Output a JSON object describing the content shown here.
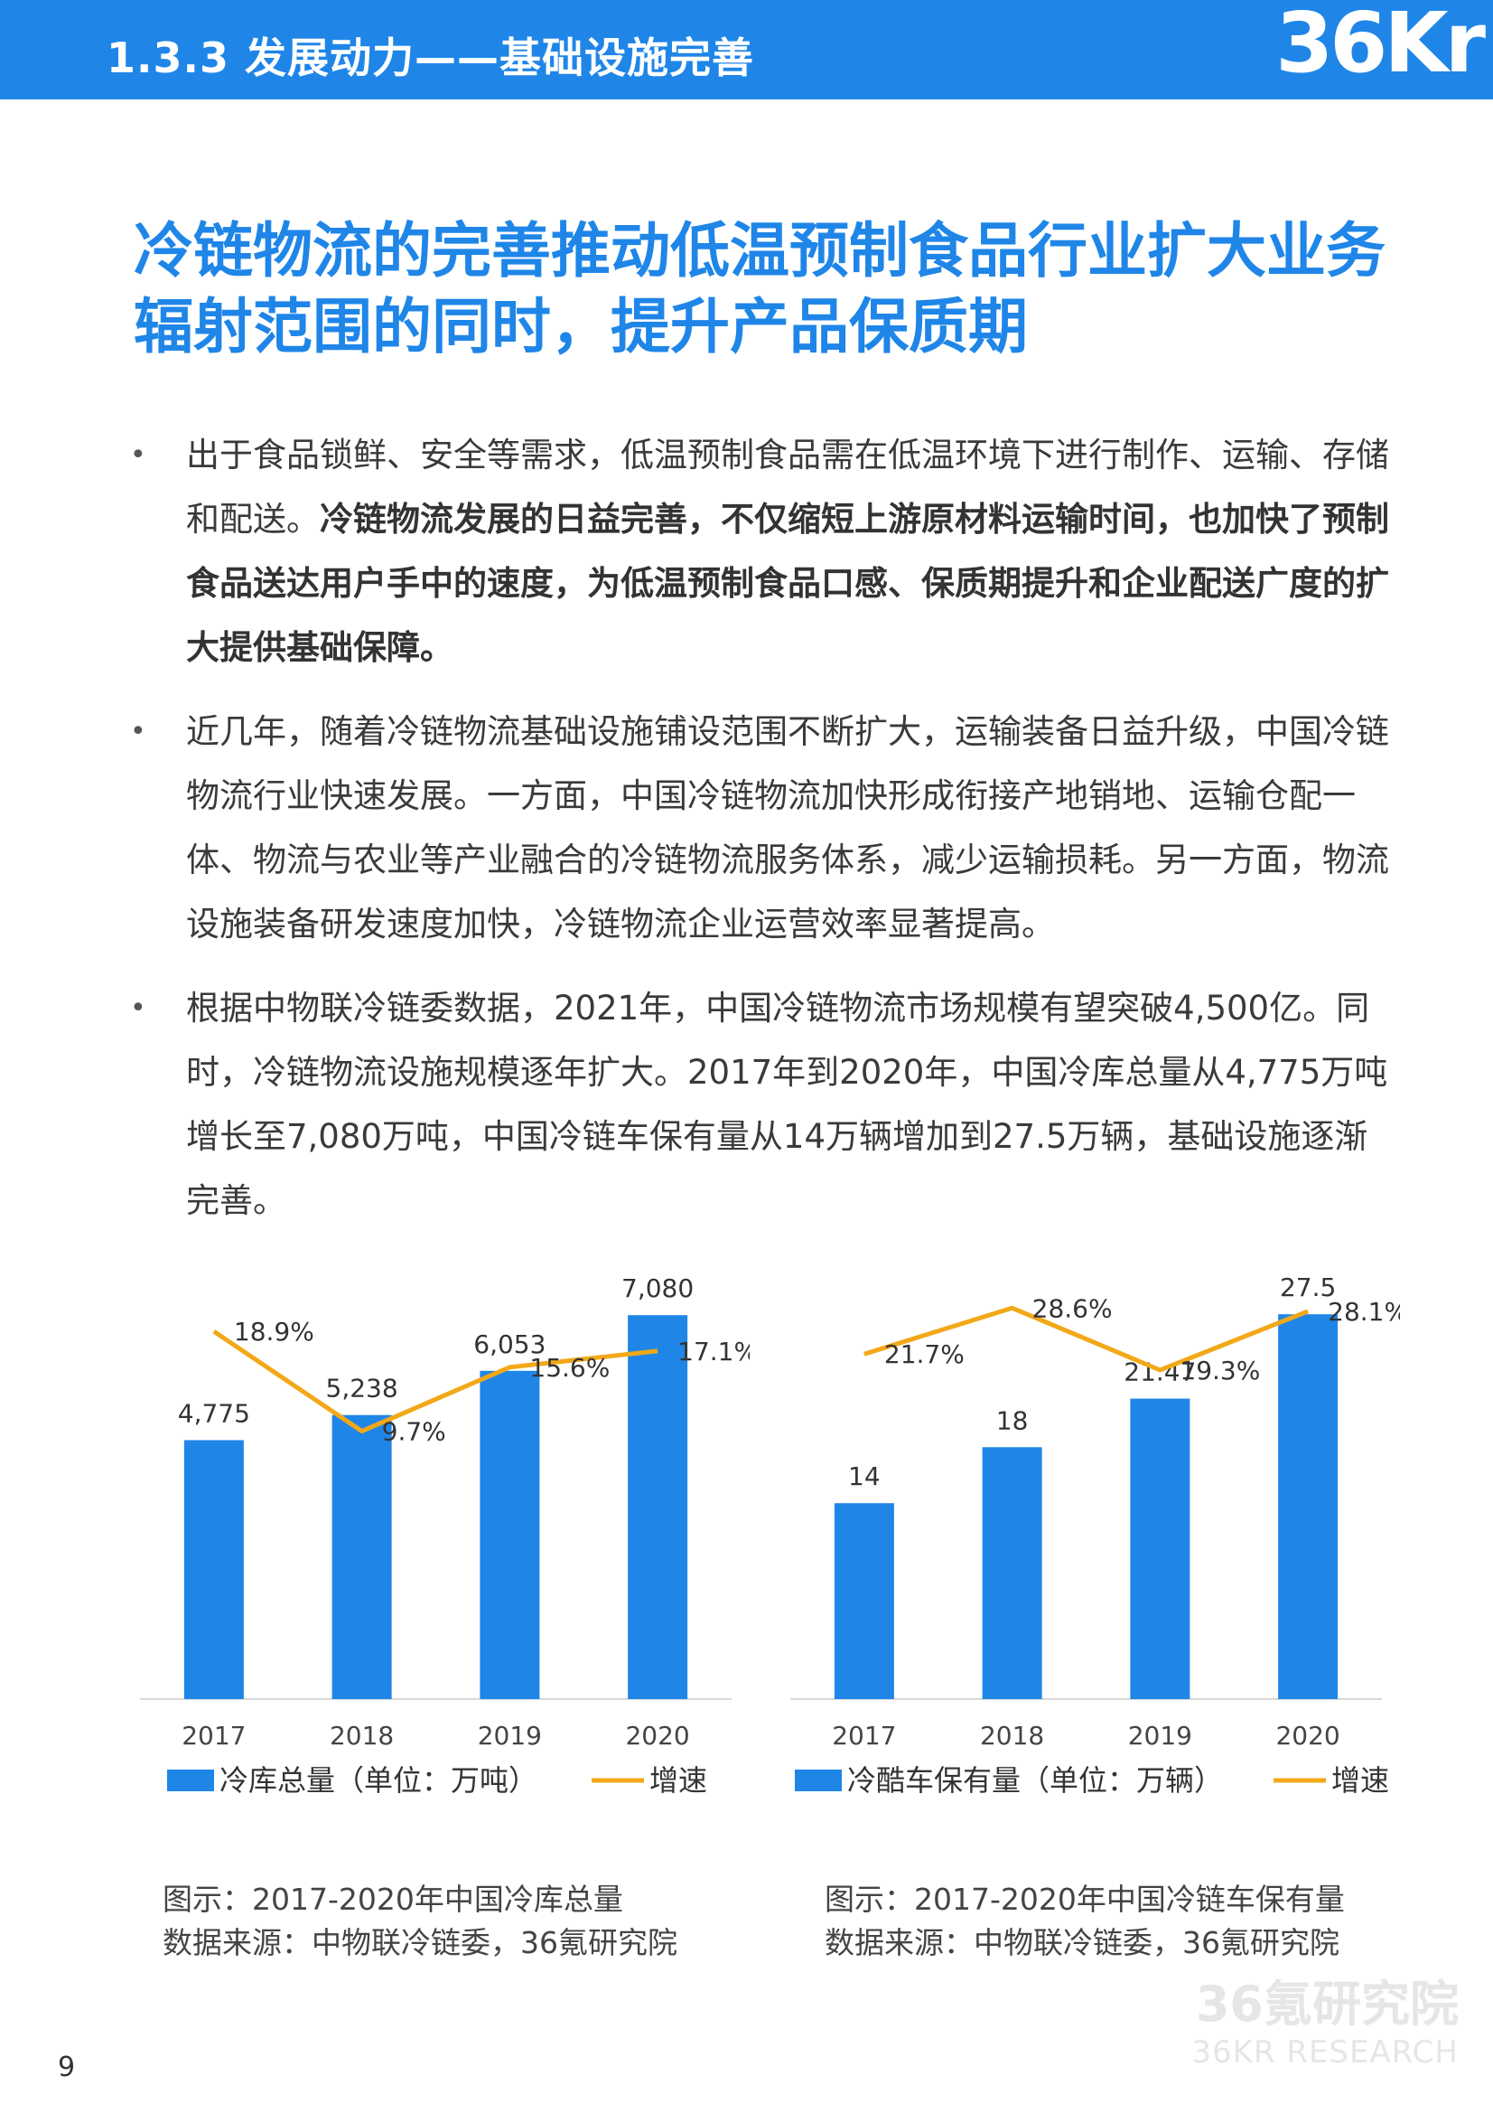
{
  "header": {
    "section_title": "1.3.3 发展动力——基础设施完善",
    "logo_text": "36Kr"
  },
  "main_title": "冷链物流的完善推动低温预制食品行业扩大业务辐射范围的同时，提升产品保质期",
  "bullets": [
    {
      "text": "出于食品锁鲜、安全等需求，低温预制食品需在低温环境下进行制作、运输、存储和配送。",
      "bold": "冷链物流发展的日益完善，不仅缩短上游原材料运输时间，也加快了预制食品送达用户手中的速度，为低温预制食品口感、保质期提升和企业配送广度的扩大提供基础保障。"
    },
    {
      "text": "近几年，随着冷链物流基础设施铺设范围不断扩大，运输装备日益升级，中国冷链物流行业快速发展。一方面，中国冷链物流加快形成衔接产地销地、运输仓配一体、物流与农业等产业融合的冷链物流服务体系，减少运输损耗。另一方面，物流设施装备研发速度加快，冷链物流企业运营效率显著提高。",
      "bold": ""
    },
    {
      "text": "根据中物联冷链委数据，2021年，中国冷链物流市场规模有望突破4,500亿。同时，冷链物流设施规模逐年扩大。2017年到2020年，中国冷库总量从4,775万吨增长至7,080万吨，中国冷链车保有量从14万辆增加到27.5万辆，基础设施逐渐完善。",
      "bold": ""
    }
  ],
  "bullet_symbol": "•",
  "chart_data": [
    {
      "type": "bar",
      "categories": [
        "2017",
        "2018",
        "2019",
        "2020"
      ],
      "series": [
        {
          "name": "冷库总量（单位：万吨）",
          "kind": "bar",
          "values": [
            4775,
            5238,
            6053,
            7080
          ],
          "labels": [
            "4,775",
            "5,238",
            "6,053",
            "7,080"
          ],
          "color": "#1f86e8"
        },
        {
          "name": "增速",
          "kind": "line",
          "values": [
            18.9,
            9.7,
            15.6,
            17.1
          ],
          "labels": [
            "18.9%",
            "9.7%",
            "15.6%",
            "17.1%"
          ],
          "color": "#f2a818"
        }
      ],
      "ylim": [
        0,
        8000
      ],
      "y2lim": [
        -15,
        25
      ],
      "grid": false,
      "legend": "bottom",
      "title": "",
      "xlabel": "",
      "ylabel": ""
    },
    {
      "type": "bar",
      "categories": [
        "2017",
        "2018",
        "2019",
        "2020"
      ],
      "series": [
        {
          "name": "冷酷车保有量（单位：万辆）",
          "kind": "bar",
          "values": [
            14,
            18,
            21.47,
            27.5
          ],
          "labels": [
            "14",
            "18",
            "21.47",
            "27.5"
          ],
          "color": "#1f86e8"
        },
        {
          "name": "增速",
          "kind": "line",
          "values": [
            21.7,
            28.6,
            19.3,
            28.1
          ],
          "labels": [
            "21.7%",
            "28.6%",
            "19.3%",
            "28.1%"
          ],
          "color": "#f2a818"
        }
      ],
      "ylim": [
        0,
        31
      ],
      "y2lim": [
        -30,
        35
      ],
      "grid": false,
      "legend": "bottom",
      "title": "",
      "xlabel": "",
      "ylabel": ""
    }
  ],
  "captions": [
    {
      "figure": "图示：2017-2020年中国冷库总量",
      "source": "数据来源：中物联冷链委，36氪研究院"
    },
    {
      "figure": "图示：2017-2020年中国冷链车保有量",
      "source": "数据来源：中物联冷链委，36氪研究院"
    }
  ],
  "watermark": {
    "cn": "36氪研究院",
    "en": "36KR RESEARCH"
  },
  "page_number": "9"
}
